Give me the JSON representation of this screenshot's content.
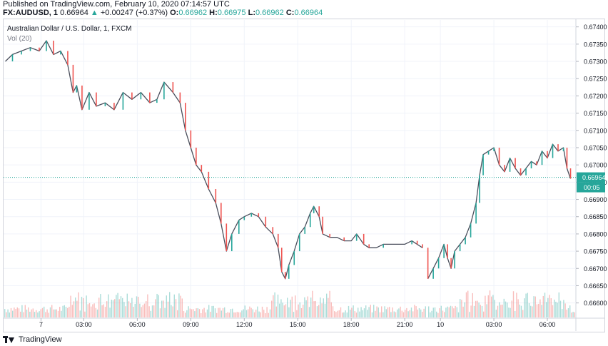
{
  "header": {
    "published": "Published on TradingView.com, February 10, 2020 07:14:57 UTC",
    "symbol": "FX:AUDUSD, 1",
    "last": "0.66964",
    "change": "+0.00247 (+0.37%)",
    "o_label": "O:",
    "o_value": "0.66962",
    "h_label": "H:",
    "h_value": "0.66975",
    "l_label": "L:",
    "l_value": "0.66962",
    "c_label": "C:",
    "c_value": "0.66964"
  },
  "legend": {
    "title": "Australian Dollar / U.S. Dollar, 1, FXCM",
    "volume": "Vol (20)"
  },
  "price_label": "0.66964",
  "countdown_label": "00:05",
  "footer": {
    "brand": "TradingView"
  },
  "colors": {
    "up": "#26a69a",
    "down": "#ef5350",
    "last_line": "#26a69a"
  },
  "chart_data": {
    "type": "line",
    "title": "Australian Dollar / U.S. Dollar, 1, FXCM",
    "xlabel": "",
    "ylabel": "",
    "ylim": [
      0.6656,
      0.6742
    ],
    "y_ticks": [
      "0.67400",
      "0.67350",
      "0.67300",
      "0.67250",
      "0.67200",
      "0.67150",
      "0.67100",
      "0.67050",
      "0.67000",
      "0.66950",
      "0.66900",
      "0.66850",
      "0.66800",
      "0.66750",
      "0.66700",
      "0.66650",
      "0.66600"
    ],
    "x_ticks": [
      {
        "label": "7",
        "t": 0.6
      },
      {
        "label": "03:00",
        "t": 3.0
      },
      {
        "label": "06:00",
        "t": 6.0
      },
      {
        "label": "09:00",
        "t": 9.0
      },
      {
        "label": "12:00",
        "t": 12.0
      },
      {
        "label": "15:00",
        "t": 15.0
      },
      {
        "label": "18:00",
        "t": 18.0
      },
      {
        "label": "21:00",
        "t": 21.0
      },
      {
        "label": "10",
        "t": 23.0
      },
      {
        "label": "03:00",
        "t": 26.0
      },
      {
        "label": "06:00",
        "t": 29.0
      }
    ],
    "last_price": 0.66964,
    "series": [
      {
        "values": [
          [
            -1.4,
            0.673
          ],
          [
            -1.0,
            0.6732
          ],
          [
            -0.5,
            0.6733
          ],
          [
            0.0,
            0.6734
          ],
          [
            0.5,
            0.6733
          ],
          [
            0.9,
            0.6736
          ],
          [
            1.3,
            0.6732
          ],
          [
            1.7,
            0.6733
          ],
          [
            2.1,
            0.6729
          ],
          [
            2.4,
            0.6721
          ],
          [
            2.6,
            0.6723
          ],
          [
            2.9,
            0.6716
          ],
          [
            3.3,
            0.6721
          ],
          [
            3.7,
            0.6717
          ],
          [
            4.2,
            0.6718
          ],
          [
            4.7,
            0.6716
          ],
          [
            5.2,
            0.6721
          ],
          [
            5.7,
            0.6719
          ],
          [
            6.2,
            0.6721
          ],
          [
            6.7,
            0.6718
          ],
          [
            7.1,
            0.6719
          ],
          [
            7.5,
            0.6724
          ],
          [
            8.0,
            0.6721
          ],
          [
            8.4,
            0.6718
          ],
          [
            8.7,
            0.671
          ],
          [
            9.0,
            0.6705
          ],
          [
            9.3,
            0.67
          ],
          [
            9.6,
            0.6698
          ],
          [
            10.0,
            0.6693
          ],
          [
            10.4,
            0.6689
          ],
          [
            10.7,
            0.6683
          ],
          [
            11.0,
            0.6675
          ],
          [
            11.3,
            0.668
          ],
          [
            11.7,
            0.6684
          ],
          [
            12.0,
            0.6685
          ],
          [
            12.4,
            0.6686
          ],
          [
            12.8,
            0.6685
          ],
          [
            13.2,
            0.6682
          ],
          [
            13.6,
            0.668
          ],
          [
            13.9,
            0.6676
          ],
          [
            14.1,
            0.6669
          ],
          [
            14.3,
            0.6667
          ],
          [
            14.5,
            0.6671
          ],
          [
            14.8,
            0.6675
          ],
          [
            15.1,
            0.668
          ],
          [
            15.4,
            0.6682
          ],
          [
            15.7,
            0.6686
          ],
          [
            15.9,
            0.6688
          ],
          [
            16.2,
            0.6685
          ],
          [
            16.4,
            0.668
          ],
          [
            16.8,
            0.6679
          ],
          [
            17.2,
            0.6679
          ],
          [
            17.6,
            0.6678
          ],
          [
            18.0,
            0.6678
          ],
          [
            18.3,
            0.668
          ],
          [
            18.7,
            0.6677
          ],
          [
            19.0,
            0.6676
          ],
          [
            19.4,
            0.6676
          ],
          [
            19.8,
            0.6677
          ],
          [
            20.2,
            0.6677
          ],
          [
            20.6,
            0.6677
          ],
          [
            21.0,
            0.6677
          ],
          [
            21.4,
            0.6678
          ],
          [
            21.7,
            0.6677
          ],
          [
            22.0,
            0.6676
          ],
          [
            22.3,
            0.6667
          ],
          [
            22.6,
            0.667
          ],
          [
            22.9,
            0.6673
          ],
          [
            23.2,
            0.6677
          ],
          [
            23.4,
            0.6673
          ],
          [
            23.6,
            0.667
          ],
          [
            23.8,
            0.6675
          ],
          [
            24.1,
            0.6677
          ],
          [
            24.4,
            0.6679
          ],
          [
            24.7,
            0.6683
          ],
          [
            25.0,
            0.6689
          ],
          [
            25.2,
            0.6697
          ],
          [
            25.4,
            0.6703
          ],
          [
            25.7,
            0.6704
          ],
          [
            26.0,
            0.6705
          ],
          [
            26.3,
            0.67
          ],
          [
            26.6,
            0.6698
          ],
          [
            26.9,
            0.6702
          ],
          [
            27.2,
            0.6699
          ],
          [
            27.5,
            0.6697
          ],
          [
            27.8,
            0.6699
          ],
          [
            28.1,
            0.6701
          ],
          [
            28.4,
            0.67
          ],
          [
            28.7,
            0.6704
          ],
          [
            29.0,
            0.6702
          ],
          [
            29.3,
            0.6706
          ],
          [
            29.6,
            0.6704
          ],
          [
            29.9,
            0.6705
          ],
          [
            30.1,
            0.6699
          ],
          [
            30.3,
            0.6696
          ]
        ]
      }
    ]
  }
}
